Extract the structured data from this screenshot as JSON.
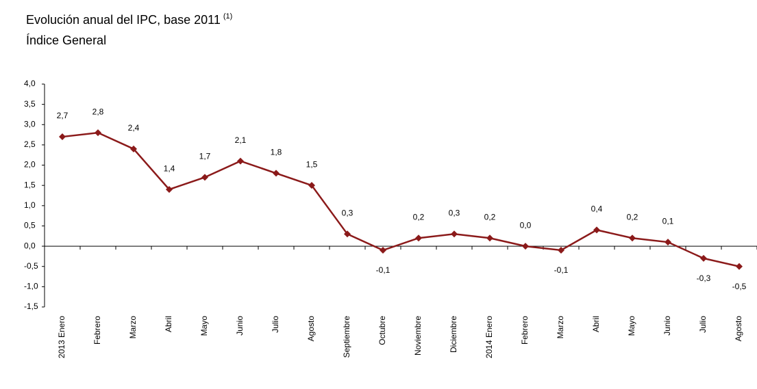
{
  "chart_data": {
    "type": "line",
    "title": "Evolución anual del IPC, base 2011",
    "title_note": "(1)",
    "subtitle": "Índice General",
    "categories": [
      "2013 Enero",
      "Febrero",
      "Marzo",
      "Abril",
      "Mayo",
      "Junio",
      "Julio",
      "Agosto",
      "Septiembre",
      "Octubre",
      "Noviembre",
      "Diciembre",
      "2014 Enero",
      "Febrero",
      "Marzo",
      "Abril",
      "Mayo",
      "Junio",
      "Julio",
      "Agosto"
    ],
    "values": [
      2.7,
      2.8,
      2.4,
      1.4,
      1.7,
      2.1,
      1.8,
      1.5,
      0.3,
      -0.1,
      0.2,
      0.3,
      0.2,
      0.0,
      -0.1,
      0.4,
      0.2,
      0.1,
      -0.3,
      -0.5
    ],
    "value_labels": [
      "2,7",
      "2,8",
      "2,4",
      "1,4",
      "1,7",
      "2,1",
      "1,8",
      "1,5",
      "0,3",
      "-0,1",
      "0,2",
      "0,3",
      "0,2",
      "0,0",
      "-0,1",
      "0,4",
      "0,2",
      "0,1",
      "-0,3",
      "-0,5"
    ],
    "color": "#8b1a1a",
    "ylim": [
      -1.5,
      4
    ],
    "yticks": [
      {
        "value": -1.5,
        "label": "-1,5"
      },
      {
        "value": -1,
        "label": "-1,0"
      },
      {
        "value": -0.5,
        "label": "-0,5"
      },
      {
        "value": 0,
        "label": "0,0"
      },
      {
        "value": 0.5,
        "label": "0,5"
      },
      {
        "value": 1,
        "label": "1,0"
      },
      {
        "value": 1.5,
        "label": "1,5"
      },
      {
        "value": 2,
        "label": "2,0"
      },
      {
        "value": 2.5,
        "label": "2,5"
      },
      {
        "value": 3,
        "label": "3,0"
      },
      {
        "value": 3.5,
        "label": "3,5"
      },
      {
        "value": 4,
        "label": "4,0"
      }
    ],
    "grid": false
  }
}
